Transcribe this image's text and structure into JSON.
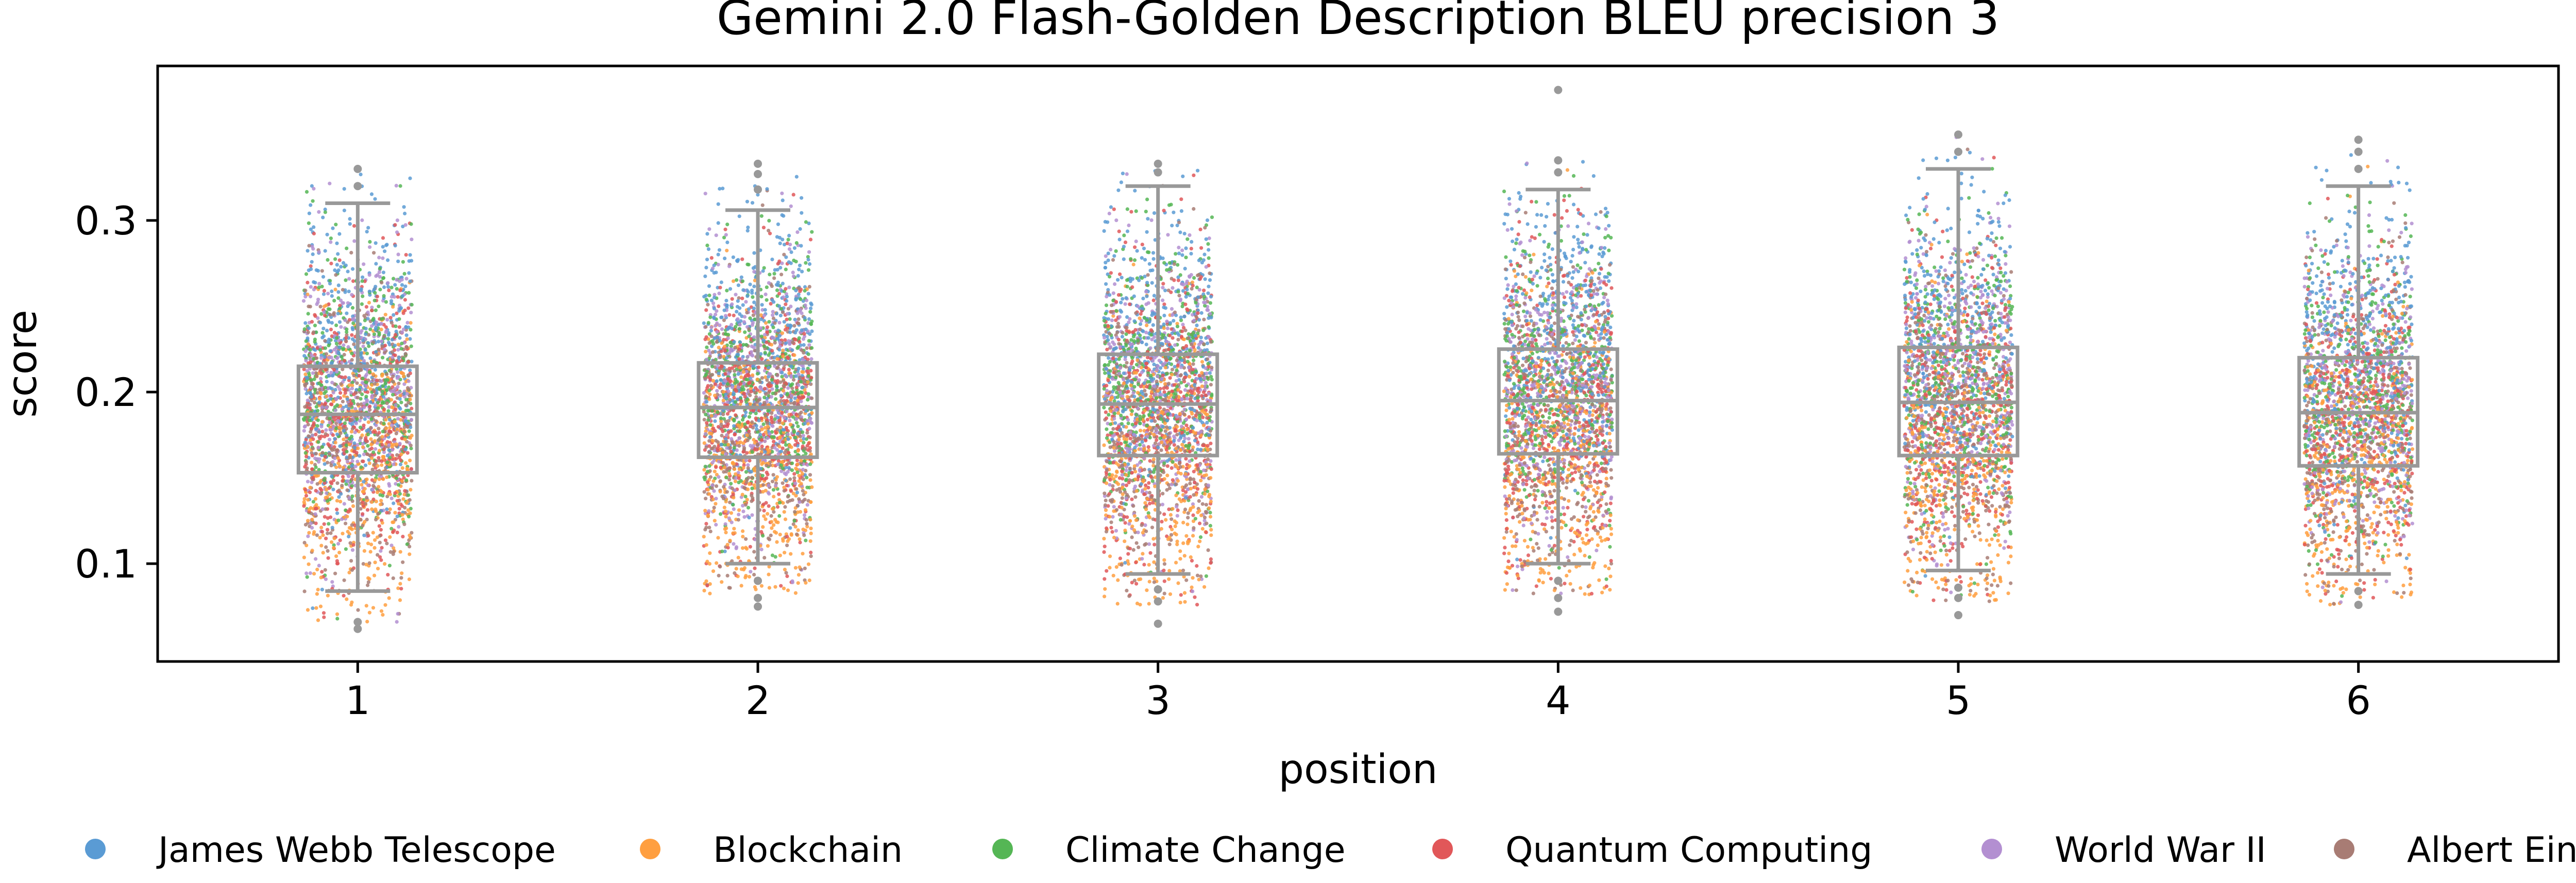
{
  "chart_data": {
    "type": "box",
    "title": "Gemini 2.0 Flash-Golden Description BLEU precision 3",
    "xlabel": "position",
    "ylabel": "score",
    "categories": [
      "1",
      "2",
      "3",
      "4",
      "5",
      "6"
    ],
    "ylim": [
      0.043,
      0.39
    ],
    "yticks": [
      0.1,
      0.2,
      0.3
    ],
    "ytick_labels": [
      "0.1",
      "0.2",
      "0.3"
    ],
    "grid": false,
    "legend_position": "bottom",
    "box_color": "#999999",
    "boxes": [
      {
        "position": "1",
        "whisker_low": 0.084,
        "q1": 0.153,
        "median": 0.187,
        "q3": 0.215,
        "whisker_high": 0.31,
        "outliers": [
          0.066,
          0.062,
          0.32,
          0.33
        ]
      },
      {
        "position": "2",
        "whisker_low": 0.1,
        "q1": 0.162,
        "median": 0.191,
        "q3": 0.217,
        "whisker_high": 0.306,
        "outliers": [
          0.09,
          0.08,
          0.075,
          0.318,
          0.327,
          0.333
        ]
      },
      {
        "position": "3",
        "whisker_low": 0.094,
        "q1": 0.163,
        "median": 0.193,
        "q3": 0.222,
        "whisker_high": 0.32,
        "outliers": [
          0.085,
          0.078,
          0.065,
          0.328,
          0.333
        ]
      },
      {
        "position": "4",
        "whisker_low": 0.1,
        "q1": 0.164,
        "median": 0.195,
        "q3": 0.225,
        "whisker_high": 0.318,
        "outliers": [
          0.09,
          0.08,
          0.072,
          0.328,
          0.335,
          0.376
        ]
      },
      {
        "position": "5",
        "whisker_low": 0.096,
        "q1": 0.163,
        "median": 0.194,
        "q3": 0.226,
        "whisker_high": 0.33,
        "outliers": [
          0.086,
          0.08,
          0.07,
          0.34,
          0.35
        ]
      },
      {
        "position": "6",
        "whisker_low": 0.094,
        "q1": 0.157,
        "median": 0.188,
        "q3": 0.22,
        "whisker_high": 0.32,
        "outliers": [
          0.084,
          0.076,
          0.33,
          0.34,
          0.347
        ]
      }
    ],
    "series": [
      {
        "name": "James Webb Telescope",
        "color": "#5a9bd4",
        "mean_offset": 0.035
      },
      {
        "name": "Blockchain",
        "color": "#ff9f40",
        "mean_offset": -0.032
      },
      {
        "name": "Climate Change",
        "color": "#55b655",
        "mean_offset": 0.012
      },
      {
        "name": "Quantum Computing",
        "color": "#e15759",
        "mean_offset": -0.004
      },
      {
        "name": "World War II",
        "color": "#b38fd1",
        "mean_offset": 0.008
      },
      {
        "name": "Albert Einstein",
        "color": "#a87c74",
        "mean_offset": -0.01
      }
    ]
  }
}
